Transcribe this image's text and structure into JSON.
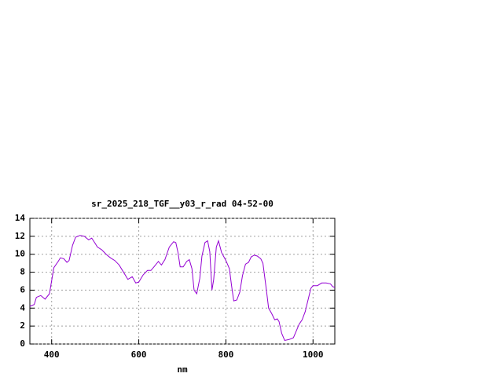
{
  "chart_data": {
    "type": "line",
    "title": "sr_2025_218_TGF__y03_r_rad 04-52-00",
    "x_label": "nm",
    "x": [
      350,
      360,
      365,
      375,
      385,
      395,
      405,
      415,
      420,
      428,
      435,
      440,
      448,
      455,
      465,
      475,
      480,
      485,
      492,
      500,
      505,
      515,
      525,
      535,
      545,
      555,
      565,
      575,
      585,
      593,
      600,
      610,
      620,
      628,
      635,
      645,
      652,
      660,
      670,
      680,
      685,
      690,
      695,
      702,
      710,
      716,
      722,
      727,
      733,
      740,
      745,
      752,
      758,
      763,
      768,
      772,
      778,
      783,
      790,
      800,
      808,
      813,
      818,
      825,
      832,
      838,
      845,
      852,
      858,
      865,
      872,
      880,
      885,
      893,
      898,
      905,
      912,
      918,
      922,
      928,
      935,
      945,
      955,
      962,
      968,
      975,
      982,
      990,
      995,
      1000,
      1010,
      1020,
      1030,
      1040,
      1045,
      1050
    ],
    "series": [
      {
        "name": "sr_2025_218_TGF__y03_r_rad 04-52-00",
        "color": "#9400d3",
        "values": [
          4.2,
          4.4,
          5.2,
          5.4,
          5.0,
          5.6,
          8.5,
          9.2,
          9.6,
          9.5,
          9.1,
          9.3,
          11.0,
          11.9,
          12.1,
          12.0,
          11.8,
          11.6,
          11.8,
          11.2,
          10.8,
          10.5,
          10.0,
          9.6,
          9.3,
          8.8,
          8.0,
          7.2,
          7.5,
          6.8,
          6.9,
          7.7,
          8.2,
          8.2,
          8.6,
          9.2,
          8.8,
          9.4,
          10.8,
          11.4,
          11.3,
          10.2,
          8.6,
          8.6,
          9.2,
          9.4,
          8.4,
          6.0,
          5.6,
          7.3,
          9.8,
          11.3,
          11.5,
          10.3,
          6.0,
          7.2,
          10.8,
          11.5,
          10.2,
          9.3,
          8.4,
          6.5,
          4.8,
          4.9,
          5.8,
          7.6,
          8.9,
          9.1,
          9.7,
          9.9,
          9.8,
          9.5,
          9.0,
          6.0,
          4.0,
          3.4,
          2.7,
          2.8,
          2.5,
          1.2,
          0.4,
          0.5,
          0.7,
          1.5,
          2.2,
          2.7,
          3.6,
          5.2,
          6.2,
          6.5,
          6.5,
          6.8,
          6.8,
          6.7,
          6.4,
          6.3
        ]
      }
    ],
    "xlim": [
      350,
      1050
    ],
    "ylim": [
      0,
      14
    ],
    "xticks": [
      400,
      600,
      800,
      1000
    ],
    "yticks": [
      0,
      2,
      4,
      6,
      8,
      10,
      12,
      14
    ],
    "grid": true
  }
}
